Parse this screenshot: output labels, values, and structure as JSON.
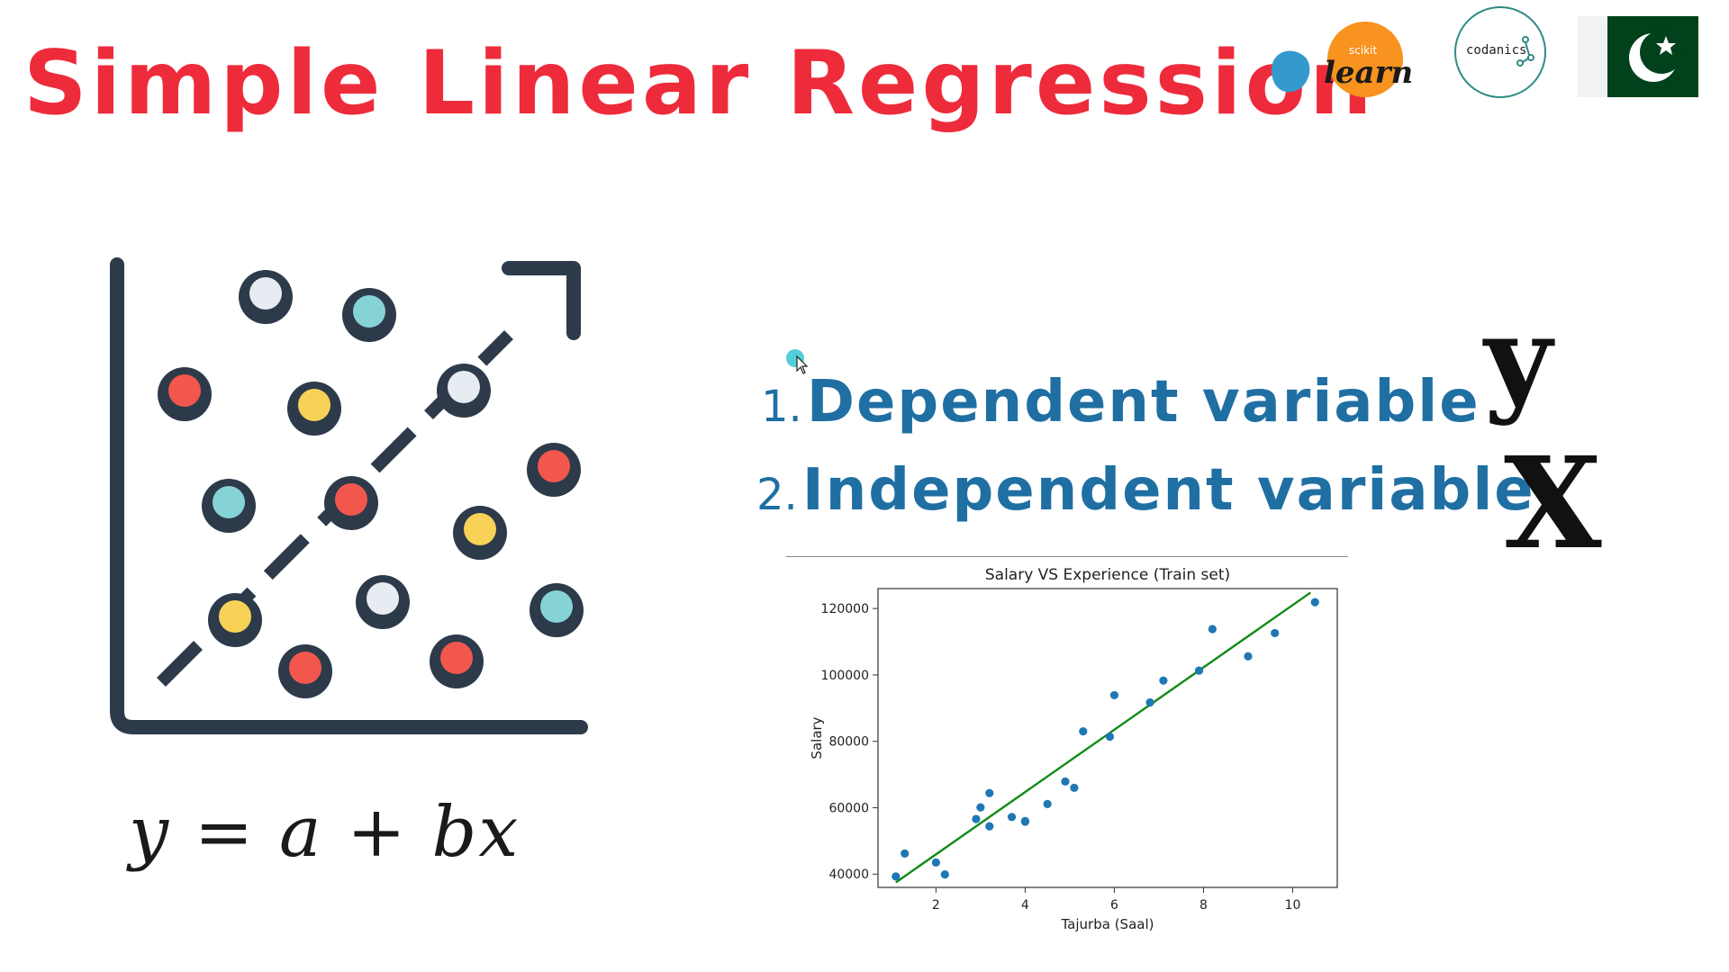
{
  "title": "Simple Linear Regression",
  "logos": {
    "sklearn_small": "scikit",
    "sklearn_big": "learn",
    "codanics": "codanics"
  },
  "colors": {
    "title": "#ee2b3b",
    "variables": "#1f6fa3",
    "illustration_dark": "#2d3a4a",
    "dot_red": "#f2574d",
    "dot_teal": "#86d3d6",
    "dot_yellow": "#f7d257",
    "dot_white": "#e6ecf2",
    "scatter": "#1f77b4",
    "fit_line": "#138a13"
  },
  "formula": "y = a + bx",
  "variables": [
    {
      "number": "1.",
      "label": "Dependent variable",
      "symbol": "y"
    },
    {
      "number": "2.",
      "label": "Independent variable",
      "symbol": "X"
    }
  ],
  "chart_data": {
    "type": "scatter",
    "title": "Salary VS Experience (Train set)",
    "xlabel": "Tajurba (Saal)",
    "ylabel": "Salary",
    "xlim": [
      0.7,
      11.0
    ],
    "ylim": [
      36000,
      126000
    ],
    "xticks": [
      2,
      4,
      6,
      8,
      10
    ],
    "yticks": [
      40000,
      60000,
      80000,
      100000,
      120000
    ],
    "grid": false,
    "points": [
      [
        1.1,
        39300
      ],
      [
        1.3,
        46200
      ],
      [
        2.0,
        43500
      ],
      [
        2.2,
        39900
      ],
      [
        2.9,
        56600
      ],
      [
        3.0,
        60100
      ],
      [
        3.2,
        54400
      ],
      [
        3.2,
        64400
      ],
      [
        3.7,
        57200
      ],
      [
        4.0,
        56000
      ],
      [
        4.0,
        55800
      ],
      [
        4.5,
        61100
      ],
      [
        4.9,
        67900
      ],
      [
        5.1,
        66000
      ],
      [
        5.3,
        83000
      ],
      [
        5.9,
        81400
      ],
      [
        6.0,
        93900
      ],
      [
        6.8,
        91700
      ],
      [
        7.1,
        98300
      ],
      [
        7.9,
        101300
      ],
      [
        8.2,
        113800
      ],
      [
        9.0,
        105600
      ],
      [
        9.6,
        112600
      ],
      [
        10.5,
        121900
      ]
    ],
    "fit_line": {
      "x": [
        1.1,
        10.4
      ],
      "y": [
        37500,
        124800
      ]
    }
  }
}
